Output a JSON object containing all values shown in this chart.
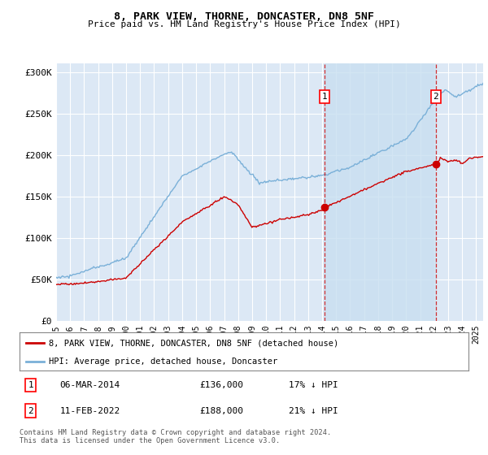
{
  "title": "8, PARK VIEW, THORNE, DONCASTER, DN8 5NF",
  "subtitle": "Price paid vs. HM Land Registry's House Price Index (HPI)",
  "background_color": "#ffffff",
  "plot_bg_color": "#dce8f5",
  "plot_bg_color_shaded": "#c8dff0",
  "grid_color": "#ffffff",
  "red_line_color": "#cc0000",
  "blue_line_color": "#7ab0d8",
  "marker1_x": 2014.17,
  "marker2_x": 2022.12,
  "marker1_date": "06-MAR-2014",
  "marker1_price": "£136,000",
  "marker1_hpi": "17% ↓ HPI",
  "marker2_date": "11-FEB-2022",
  "marker2_price": "£188,000",
  "marker2_hpi": "21% ↓ HPI",
  "legend_red": "8, PARK VIEW, THORNE, DONCASTER, DN8 5NF (detached house)",
  "legend_blue": "HPI: Average price, detached house, Doncaster",
  "footer": "Contains HM Land Registry data © Crown copyright and database right 2024.\nThis data is licensed under the Open Government Licence v3.0.",
  "xmin": 1995,
  "xmax": 2025.5,
  "ymin": 0,
  "ymax": 310000,
  "yticks": [
    0,
    50000,
    100000,
    150000,
    200000,
    250000,
    300000
  ],
  "ylabels": [
    "£0",
    "£50K",
    "£100K",
    "£150K",
    "£200K",
    "£250K",
    "£300K"
  ]
}
